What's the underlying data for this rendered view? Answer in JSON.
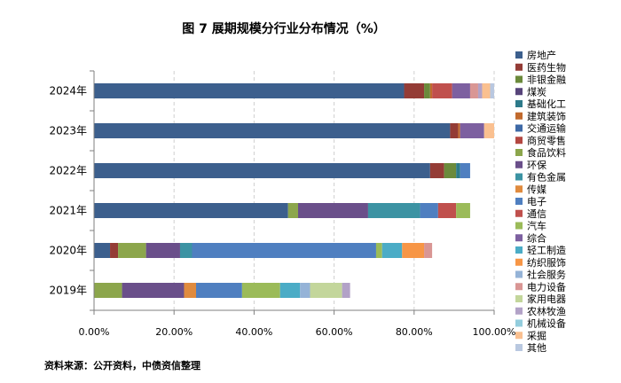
{
  "title": "图 7  展期规模分行业分布情况（%）",
  "source": "资料来源：公开资料，中债资信整理",
  "chart_data": {
    "type": "bar",
    "orientation": "horizontal",
    "stacked": true,
    "title": "图 7  展期规模分行业分布情况（%）",
    "xlabel": "",
    "ylabel": "",
    "xlim": [
      0,
      100
    ],
    "x_ticks": [
      "0.00%",
      "20.00%",
      "40.00%",
      "60.00%",
      "80.00%",
      "100.00%"
    ],
    "categories": [
      "2024年",
      "2023年",
      "2022年",
      "2021年",
      "2020年",
      "2019年"
    ],
    "legend_position": "right",
    "series": [
      {
        "name": "房地产",
        "color": "#3c5f8d",
        "values": [
          77.5,
          89.0,
          84.0,
          48.5,
          4.0,
          0.0
        ]
      },
      {
        "name": "医药生物",
        "color": "#943c36",
        "values": [
          5.0,
          2.0,
          3.5,
          0.0,
          2.0,
          0.0
        ]
      },
      {
        "name": "非银金融",
        "color": "#6b8a3b",
        "values": [
          1.5,
          0.0,
          3.0,
          0.0,
          0.0,
          0.0
        ]
      },
      {
        "name": "煤炭",
        "color": "#57447a",
        "values": [
          0.0,
          0.0,
          0.0,
          0.0,
          0.0,
          0.0
        ]
      },
      {
        "name": "基础化工",
        "color": "#2d7a8a",
        "values": [
          0.0,
          0.0,
          1.0,
          0.0,
          0.0,
          0.0
        ]
      },
      {
        "name": "建筑装饰",
        "color": "#c16a2d",
        "values": [
          0.5,
          0.5,
          0.0,
          0.0,
          0.0,
          0.0
        ]
      },
      {
        "name": "交通运输",
        "color": "#3e69a6",
        "values": [
          0.0,
          0.0,
          0.0,
          0.0,
          0.0,
          0.0
        ]
      },
      {
        "name": "商贸零售",
        "color": "#b34741",
        "values": [
          0.0,
          0.0,
          0.0,
          0.0,
          0.0,
          0.0
        ]
      },
      {
        "name": "食品饮料",
        "color": "#8ca64c",
        "values": [
          0.0,
          0.0,
          0.0,
          2.5,
          7.0,
          7.0
        ]
      },
      {
        "name": "环保",
        "color": "#6a4f8a",
        "values": [
          0.0,
          0.0,
          0.0,
          17.5,
          8.5,
          15.5
        ]
      },
      {
        "name": "有色金属",
        "color": "#3c93a3",
        "values": [
          0.0,
          0.0,
          0.0,
          13.0,
          3.0,
          0.0
        ]
      },
      {
        "name": "传媒",
        "color": "#e08b3e",
        "values": [
          0.0,
          0.0,
          0.0,
          0.0,
          0.0,
          3.0
        ]
      },
      {
        "name": "电子",
        "color": "#4f7fc0",
        "values": [
          0.0,
          0.0,
          2.5,
          4.5,
          46.0,
          11.5
        ]
      },
      {
        "name": "通信",
        "color": "#c0504d",
        "values": [
          5.0,
          0.0,
          0.0,
          4.5,
          0.0,
          0.0
        ]
      },
      {
        "name": "汽车",
        "color": "#9bbb59",
        "values": [
          0.0,
          0.0,
          0.0,
          3.5,
          1.5,
          9.5
        ]
      },
      {
        "name": "综合",
        "color": "#7d60a0",
        "values": [
          4.5,
          6.0,
          0.0,
          0.0,
          0.0,
          0.0
        ]
      },
      {
        "name": "轻工制造",
        "color": "#4bacc6",
        "values": [
          0.0,
          0.0,
          0.0,
          0.0,
          5.0,
          5.0
        ]
      },
      {
        "name": "纺织服饰",
        "color": "#f79646",
        "values": [
          0.0,
          0.0,
          0.0,
          0.0,
          5.5,
          0.0
        ]
      },
      {
        "name": "社会服务",
        "color": "#95b3d7",
        "values": [
          0.0,
          0.0,
          0.0,
          0.0,
          0.0,
          2.5
        ]
      },
      {
        "name": "电力设备",
        "color": "#d99694",
        "values": [
          2.0,
          0.0,
          0.0,
          0.0,
          2.0,
          0.0
        ]
      },
      {
        "name": "家用电器",
        "color": "#c3d69b",
        "values": [
          0.0,
          0.0,
          0.0,
          0.0,
          0.0,
          8.0
        ]
      },
      {
        "name": "农林牧渔",
        "color": "#b2a2c7",
        "values": [
          1.0,
          0.0,
          0.0,
          0.0,
          0.0,
          2.0
        ]
      },
      {
        "name": "机械设备",
        "color": "#93cddd",
        "values": [
          0.0,
          0.0,
          0.0,
          0.0,
          0.0,
          0.0
        ]
      },
      {
        "name": "采掘",
        "color": "#fac090",
        "values": [
          2.0,
          2.5,
          0.0,
          0.0,
          0.0,
          0.0
        ]
      },
      {
        "name": "其他",
        "color": "#b9c8e0",
        "values": [
          1.0,
          0.0,
          0.0,
          0.0,
          0.0,
          0.0
        ]
      }
    ]
  }
}
